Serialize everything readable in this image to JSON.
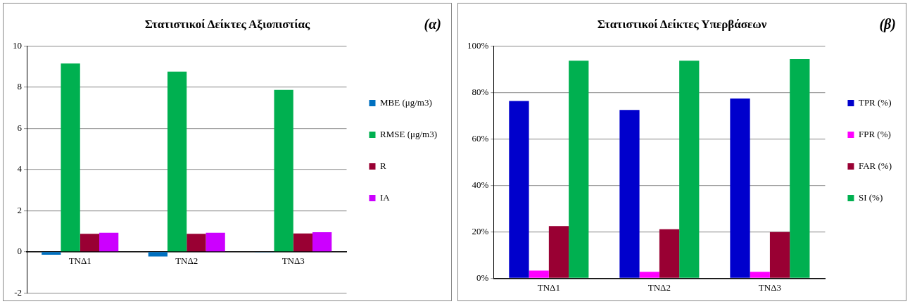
{
  "chart_data": [
    {
      "type": "bar",
      "title": "Στατιστικοί Δείκτες Αξιοπιστίας",
      "annotations": [
        "(α)"
      ],
      "categories": [
        "ΤΝΔ1",
        "ΤΝΔ2",
        "ΤΝΔ3"
      ],
      "series": [
        {
          "name": "MBE (μg/m3)",
          "color": "#0070c0",
          "values": [
            -0.15,
            -0.23,
            -0.03
          ]
        },
        {
          "name": "RMSE (μg/m3)",
          "color": "#00b050",
          "values": [
            9.15,
            8.76,
            7.87
          ]
        },
        {
          "name": "R",
          "color": "#990033",
          "values": [
            0.87,
            0.87,
            0.89
          ]
        },
        {
          "name": "IA",
          "color": "#cc00ff",
          "values": [
            0.92,
            0.92,
            0.95
          ]
        }
      ],
      "ylim": [
        -2,
        10
      ],
      "yticks": [
        -2,
        0,
        2,
        4,
        6,
        8,
        10
      ],
      "grid": "y",
      "legend": "right"
    },
    {
      "type": "bar",
      "title": "Στατιστικοί Δείκτες Υπερβάσεων",
      "annotations": [
        "(β)"
      ],
      "categories": [
        "ΤΝΔ1",
        "ΤΝΔ2",
        "ΤΝΔ3"
      ],
      "series": [
        {
          "name": "TPR (%)",
          "color": "#0000cc",
          "values": [
            76.3,
            72.5,
            77.4
          ]
        },
        {
          "name": "FPR (%)",
          "color": "#ff00ff",
          "values": [
            3.3,
            2.8,
            2.8
          ]
        },
        {
          "name": "FAR (%)",
          "color": "#990033",
          "values": [
            22.5,
            21.1,
            19.9
          ]
        },
        {
          "name": "SI (%)",
          "color": "#00b050",
          "values": [
            93.7,
            93.7,
            94.4
          ]
        }
      ],
      "ylim": [
        0,
        100
      ],
      "yticks": [
        {
          "value": 0,
          "label": "0%"
        },
        {
          "value": 20,
          "label": "20%"
        },
        {
          "value": 40,
          "label": "40%"
        },
        {
          "value": 60,
          "label": "60%"
        },
        {
          "value": 80,
          "label": "80%"
        },
        {
          "value": 100,
          "label": "100%"
        }
      ],
      "grid": "y",
      "legend": "right"
    }
  ]
}
